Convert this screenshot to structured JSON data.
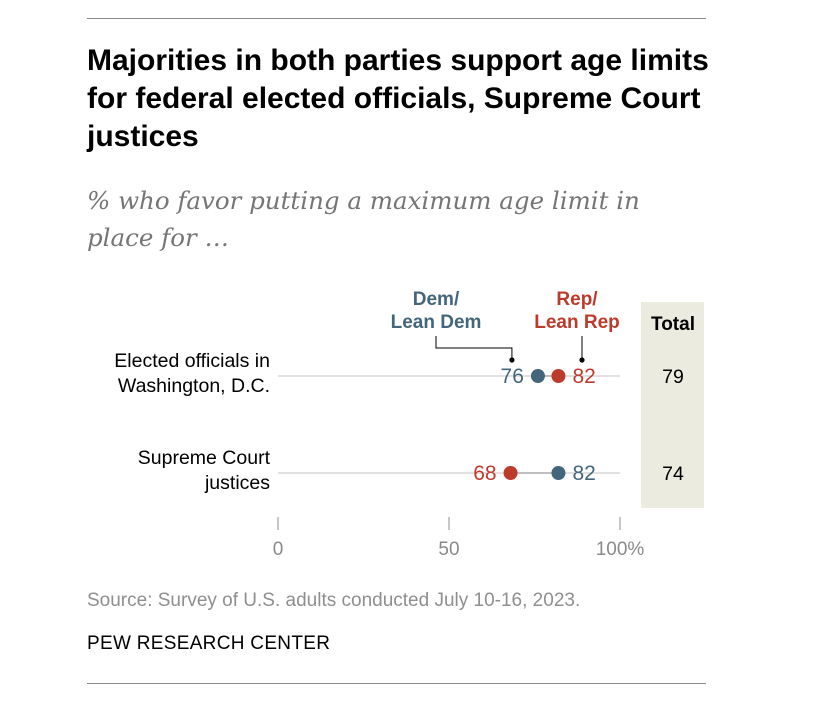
{
  "title": "Majorities in both parties support age limits for federal elected officials, Supreme Court justices",
  "subtitle": "% who favor putting a maximum age limit in place for …",
  "source": "Source: Survey of U.S. adults conducted July 10-16, 2023.",
  "brand": "PEW RESEARCH CENTER",
  "colors": {
    "dem": "#44667c",
    "rep": "#bd3b2b",
    "total_bg": "#ecebe0",
    "guide": "#d9d9d9"
  },
  "chart_data": {
    "type": "dot",
    "title": "Majorities in both parties support age limits for federal elected officials, Supreme Court justices",
    "subtitle": "% who favor putting a maximum age limit in place for …",
    "xlim": [
      0,
      100
    ],
    "ticks": [
      0,
      50,
      100
    ],
    "tick_labels": [
      "0",
      "50",
      "100%"
    ],
    "legend": {
      "dem": "Dem/\nLean Dem",
      "rep": "Rep/\nLean Rep",
      "total": "Total"
    },
    "categories": [
      "Elected officials in\nWashington, D.C.",
      "Supreme Court\njustices"
    ],
    "series": [
      {
        "name": "Dem/Lean Dem",
        "values": [
          76,
          82
        ]
      },
      {
        "name": "Rep/Lean Rep",
        "values": [
          82,
          68
        ]
      }
    ],
    "total": [
      79,
      74
    ]
  }
}
